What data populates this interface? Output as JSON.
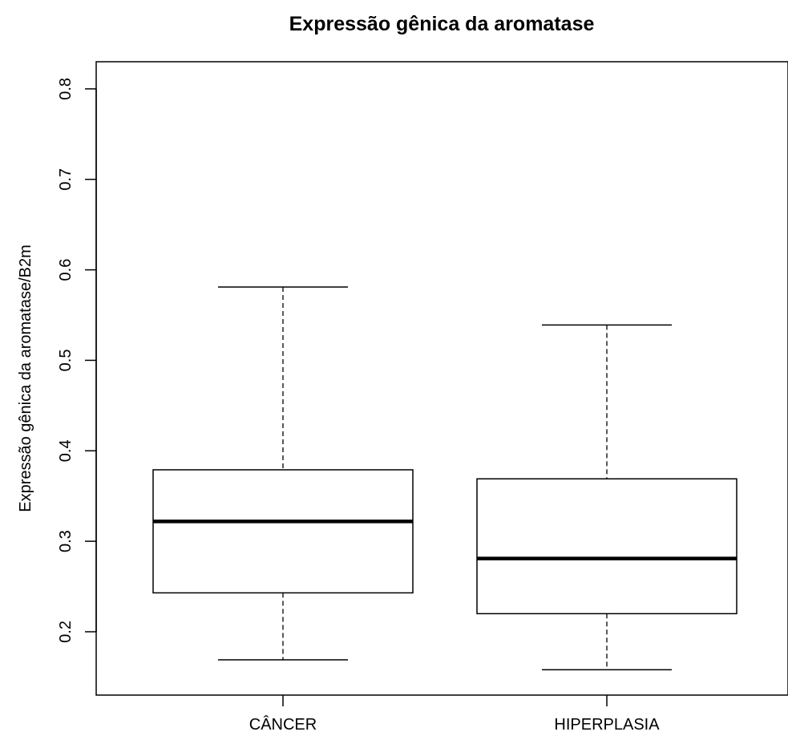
{
  "chart_data": {
    "type": "boxplot",
    "title": "Expressão gênica da aromatase",
    "xlabel": "",
    "ylabel": "Expressão gênica da aromatase/B2m",
    "ylim": [
      0.13,
      0.83
    ],
    "yticks": [
      0.2,
      0.3,
      0.4,
      0.5,
      0.6,
      0.7,
      0.8
    ],
    "ytick_labels": [
      "0.2",
      "0.3",
      "0.4",
      "0.5",
      "0.6",
      "0.7",
      "0.8"
    ],
    "categories": [
      "CÂNCER",
      "HIPERPLASIA"
    ],
    "boxes": [
      {
        "category": "CÂNCER",
        "whisker_low": 0.169,
        "q1": 0.243,
        "median": 0.322,
        "q3": 0.379,
        "whisker_high": 0.581
      },
      {
        "category": "HIPERPLASIA",
        "whisker_low": 0.158,
        "q1": 0.22,
        "median": 0.281,
        "q3": 0.369,
        "whisker_high": 0.539
      }
    ],
    "grid": false,
    "legend": "none"
  }
}
